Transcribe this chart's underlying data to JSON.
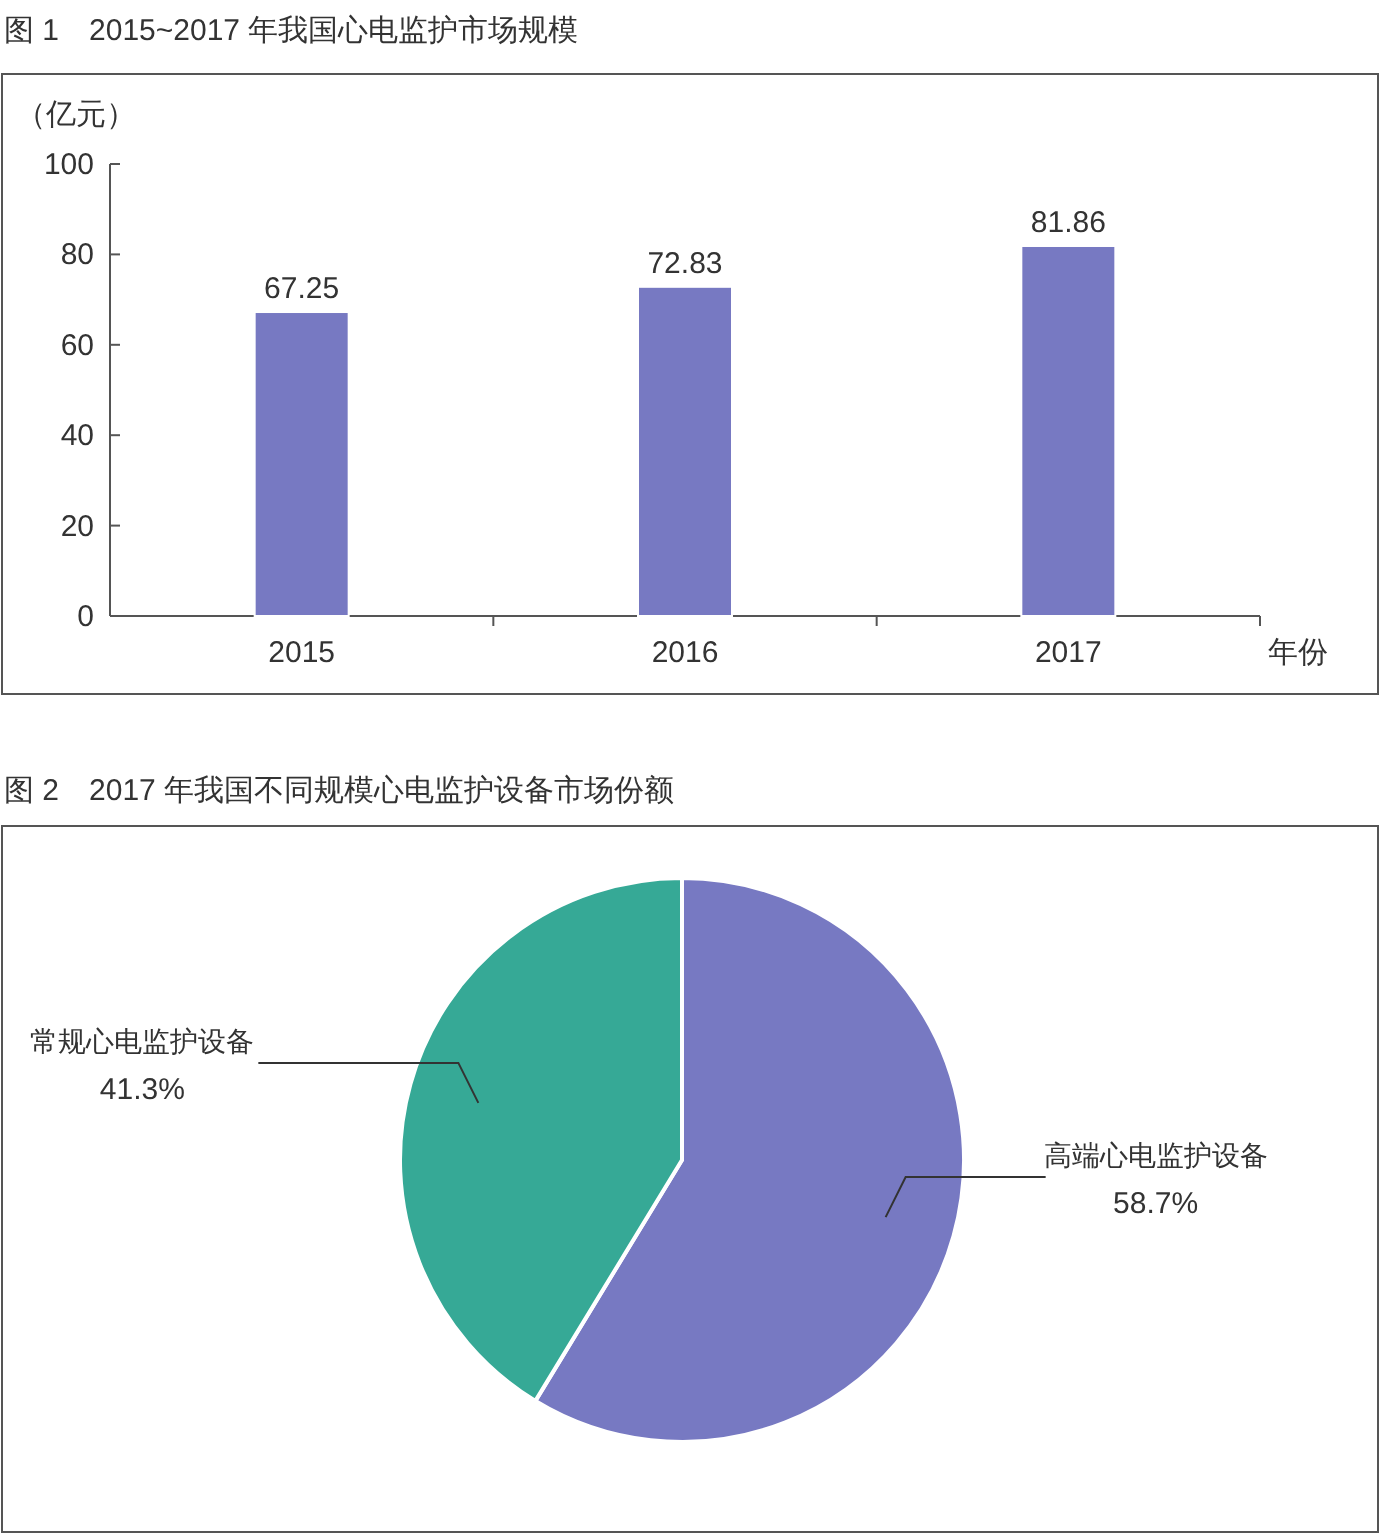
{
  "chart_data": [
    {
      "type": "bar",
      "title": "图 1　2015~2017 年我国心电监护市场规模",
      "ylabel": "（亿元）",
      "xlabel": "年份",
      "categories": [
        "2015",
        "2016",
        "2017"
      ],
      "values": [
        67.25,
        72.83,
        81.86
      ],
      "color": "#7779c2",
      "ylim": [
        0,
        100
      ],
      "yticks": [
        0,
        20,
        40,
        60,
        80,
        100
      ],
      "data_labels": true,
      "grid": false
    },
    {
      "type": "pie",
      "title": "图 2　2017 年我国不同规模心电监护设备市场份额",
      "categories": [
        "高端心电监护设备",
        "常规心电监护设备"
      ],
      "values": [
        58.7,
        41.3
      ],
      "colors": [
        "#7779c2",
        "#36a996"
      ],
      "value_labels": [
        "58.7%",
        "41.3%"
      ]
    }
  ]
}
